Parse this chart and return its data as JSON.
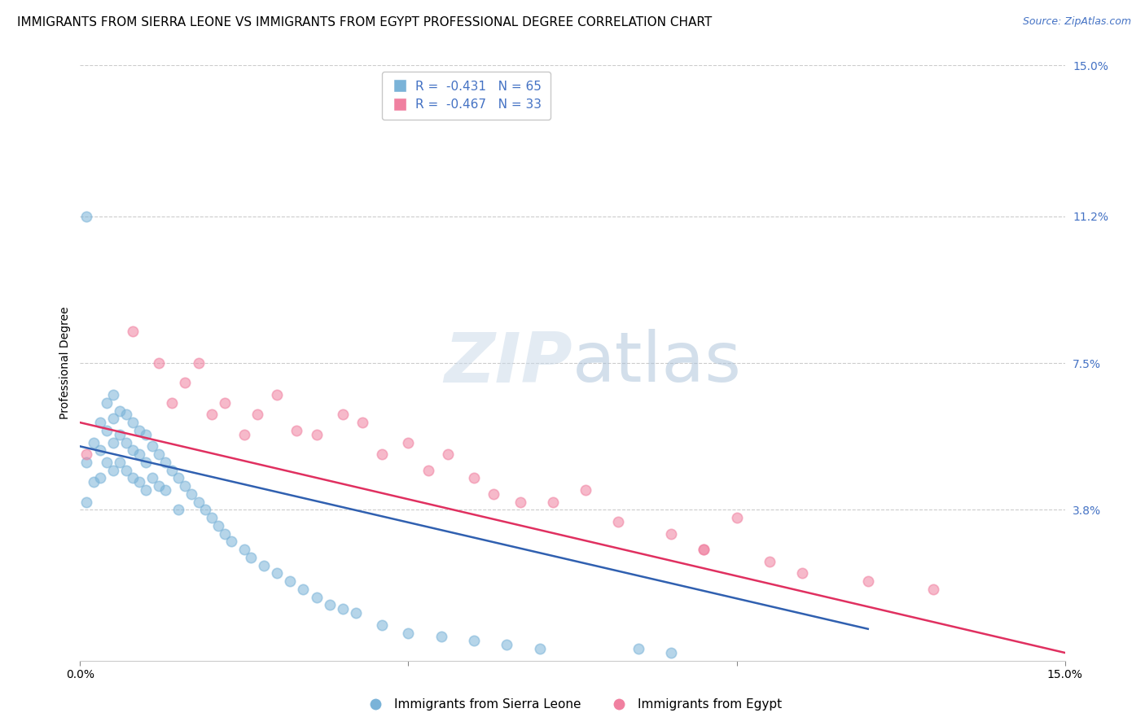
{
  "title": "IMMIGRANTS FROM SIERRA LEONE VS IMMIGRANTS FROM EGYPT PROFESSIONAL DEGREE CORRELATION CHART",
  "source": "Source: ZipAtlas.com",
  "ylabel": "Professional Degree",
  "xlim": [
    0.0,
    0.15
  ],
  "ylim": [
    0.0,
    0.15
  ],
  "ytick_positions_right": [
    0.038,
    0.075,
    0.112,
    0.15
  ],
  "ytick_labels_right": [
    "3.8%",
    "7.5%",
    "11.2%",
    "15.0%"
  ],
  "blue_color": "#7ab3d8",
  "pink_color": "#f080a0",
  "blue_R": "-0.431",
  "blue_N": "65",
  "pink_R": "-0.467",
  "pink_N": "33",
  "legend_label_blue": "Immigrants from Sierra Leone",
  "legend_label_pink": "Immigrants from Egypt",
  "blue_scatter_x": [
    0.001,
    0.001,
    0.002,
    0.002,
    0.003,
    0.003,
    0.003,
    0.004,
    0.004,
    0.004,
    0.005,
    0.005,
    0.005,
    0.005,
    0.006,
    0.006,
    0.006,
    0.007,
    0.007,
    0.007,
    0.008,
    0.008,
    0.008,
    0.009,
    0.009,
    0.009,
    0.01,
    0.01,
    0.01,
    0.011,
    0.011,
    0.012,
    0.012,
    0.013,
    0.013,
    0.014,
    0.015,
    0.015,
    0.016,
    0.017,
    0.018,
    0.019,
    0.02,
    0.021,
    0.022,
    0.023,
    0.025,
    0.026,
    0.028,
    0.03,
    0.032,
    0.034,
    0.036,
    0.038,
    0.04,
    0.042,
    0.046,
    0.05,
    0.055,
    0.06,
    0.065,
    0.07,
    0.085,
    0.09,
    0.001
  ],
  "blue_scatter_y": [
    0.05,
    0.04,
    0.055,
    0.045,
    0.06,
    0.053,
    0.046,
    0.065,
    0.058,
    0.05,
    0.067,
    0.061,
    0.055,
    0.048,
    0.063,
    0.057,
    0.05,
    0.062,
    0.055,
    0.048,
    0.06,
    0.053,
    0.046,
    0.058,
    0.052,
    0.045,
    0.057,
    0.05,
    0.043,
    0.054,
    0.046,
    0.052,
    0.044,
    0.05,
    0.043,
    0.048,
    0.046,
    0.038,
    0.044,
    0.042,
    0.04,
    0.038,
    0.036,
    0.034,
    0.032,
    0.03,
    0.028,
    0.026,
    0.024,
    0.022,
    0.02,
    0.018,
    0.016,
    0.014,
    0.013,
    0.012,
    0.009,
    0.007,
    0.006,
    0.005,
    0.004,
    0.003,
    0.003,
    0.002,
    0.112
  ],
  "pink_scatter_x": [
    0.001,
    0.008,
    0.012,
    0.014,
    0.016,
    0.018,
    0.02,
    0.022,
    0.025,
    0.027,
    0.03,
    0.033,
    0.036,
    0.04,
    0.043,
    0.046,
    0.05,
    0.053,
    0.056,
    0.06,
    0.063,
    0.067,
    0.072,
    0.077,
    0.082,
    0.09,
    0.095,
    0.1,
    0.105,
    0.11,
    0.12,
    0.13,
    0.095
  ],
  "pink_scatter_y": [
    0.052,
    0.083,
    0.075,
    0.065,
    0.07,
    0.075,
    0.062,
    0.065,
    0.057,
    0.062,
    0.067,
    0.058,
    0.057,
    0.062,
    0.06,
    0.052,
    0.055,
    0.048,
    0.052,
    0.046,
    0.042,
    0.04,
    0.04,
    0.043,
    0.035,
    0.032,
    0.028,
    0.036,
    0.025,
    0.022,
    0.02,
    0.018,
    0.028
  ],
  "blue_trend_x": [
    0.0,
    0.12
  ],
  "blue_trend_y": [
    0.054,
    0.008
  ],
  "pink_trend_x": [
    0.0,
    0.15
  ],
  "pink_trend_y": [
    0.06,
    0.002
  ],
  "grid_color": "#cccccc",
  "bg_color": "#ffffff",
  "title_fontsize": 11,
  "ylabel_fontsize": 10,
  "tick_fontsize": 10,
  "legend_fontsize": 11,
  "source_fontsize": 9,
  "right_tick_color": "#4472c4",
  "source_color": "#4472c4",
  "legend_text_color": "#4472c4"
}
